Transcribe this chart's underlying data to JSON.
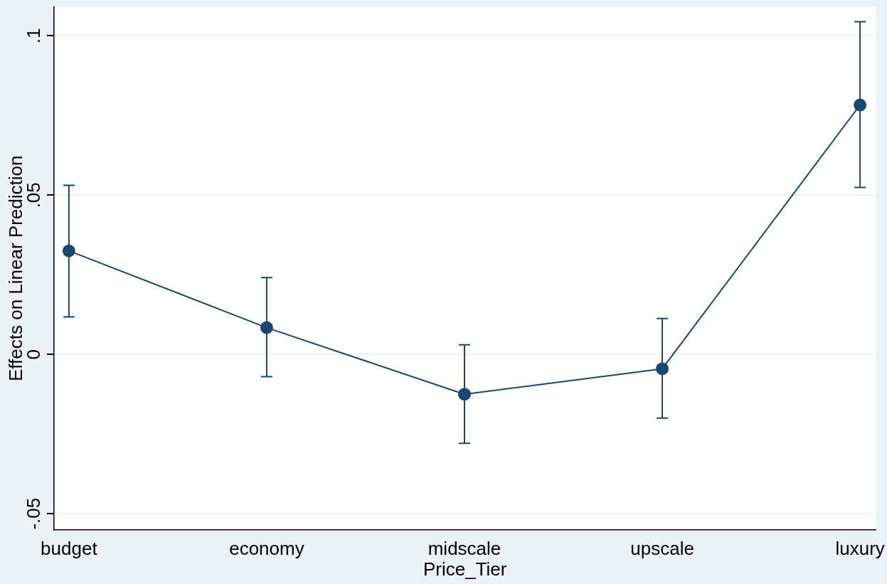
{
  "chart_data": {
    "type": "line",
    "xlabel": "Price_Tier",
    "ylabel": "Effects on Linear Prediction",
    "categories": [
      "budget",
      "economy",
      "midscale",
      "upscale",
      "luxury"
    ],
    "series": [
      {
        "color": "#1a476f",
        "values": [
          0.0325,
          0.0084,
          -0.0125,
          -0.0045,
          0.0783
        ],
        "errors": [
          [
            0.0118,
            0.0531
          ],
          [
            -0.007,
            0.0241
          ],
          [
            -0.0279,
            0.003
          ],
          [
            -0.02,
            0.0113
          ],
          [
            0.0524,
            0.1044
          ]
        ]
      }
    ],
    "ylim": [
      -0.055,
      0.109
    ],
    "yticks": [
      {
        "value": -0.05,
        "label": "-.05"
      },
      {
        "value": 0,
        "label": "0"
      },
      {
        "value": 0.05,
        "label": ".05"
      },
      {
        "value": 0.1,
        "label": ".1"
      }
    ],
    "grid": "y",
    "legend": false,
    "marker": "circle",
    "line_style": "solid"
  }
}
